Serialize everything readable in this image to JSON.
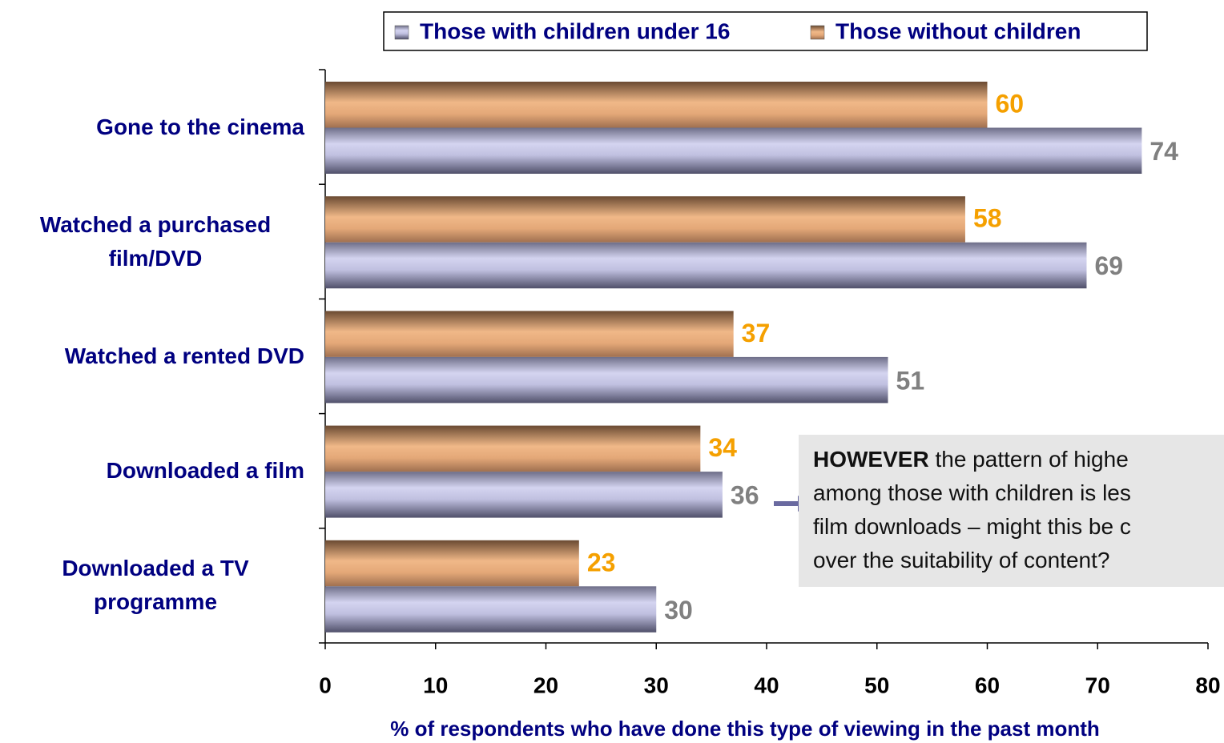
{
  "chart_data": {
    "type": "bar",
    "orientation": "horizontal",
    "categories": [
      "Gone to the cinema",
      "Watched a purchased film/DVD",
      "Watched a rented DVD",
      "Downloaded a film",
      "Downloaded a TV programme"
    ],
    "series": [
      {
        "name": "Those with children under 16",
        "color": "#9a9ac0",
        "values": [
          74,
          69,
          51,
          36,
          30
        ]
      },
      {
        "name": "Those without children",
        "color": "#d8966a",
        "values": [
          60,
          58,
          37,
          34,
          23
        ]
      }
    ],
    "xlim": [
      0,
      80
    ],
    "xticks": [
      0,
      10,
      20,
      30,
      40,
      50,
      60,
      70,
      80
    ],
    "xlabel": "% of respondents who have done this type of viewing in the past month",
    "legend": "top",
    "annotation": {
      "lead": "HOWEVER",
      "lines": [
        "the pattern of highe",
        "among those with children is les",
        "film downloads – might this be c",
        "over the suitability of content?"
      ]
    }
  }
}
